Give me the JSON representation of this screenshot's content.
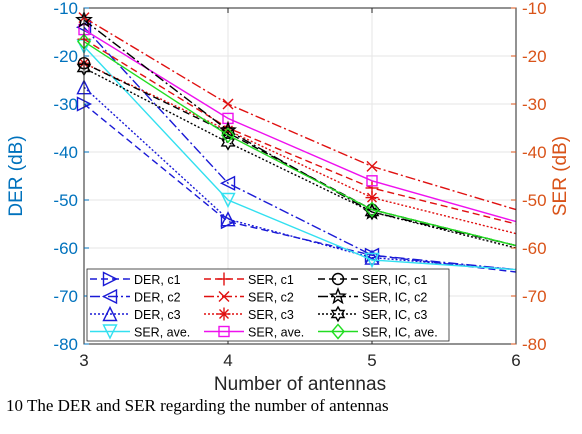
{
  "chart_data": {
    "type": "line",
    "xlabel": "Number of antennas",
    "ylabel_left": "DER (dB)",
    "ylabel_right": "SER (dB)",
    "xlim": [
      3,
      6
    ],
    "ylim": [
      -80,
      -10
    ],
    "xticks": [
      "3",
      "4",
      "5",
      "6"
    ],
    "yticks": [
      "-10",
      "-20",
      "-30",
      "-40",
      "-50",
      "-60",
      "-70",
      "-80"
    ],
    "grid": true,
    "legend_position": "bottom-left",
    "colors": {
      "left_axis": "#0072BD",
      "right_axis": "#D95319"
    },
    "series": [
      {
        "name": "DER, c1",
        "axis": "left",
        "color": "#1a1ad6",
        "dash": "7,4",
        "marker": "triangle-right",
        "x": [
          3,
          4,
          5,
          6
        ],
        "y": [
          -30.0,
          -54.5,
          -61.5,
          -65.0
        ]
      },
      {
        "name": "DER, c2",
        "axis": "left",
        "color": "#1a1ad6",
        "dash": "10,3,2,3",
        "marker": "triangle-left",
        "x": [
          3,
          4,
          5,
          6
        ],
        "y": [
          -14.0,
          -46.5,
          -61.5,
          -64.5
        ]
      },
      {
        "name": "DER, c3",
        "axis": "left",
        "color": "#1a1ad6",
        "dash": "2,2",
        "marker": "triangle-up",
        "x": [
          3,
          4,
          5,
          6
        ],
        "y": [
          -26.5,
          -54.0,
          -62.0,
          -64.5
        ]
      },
      {
        "name": "SER, ave.",
        "axis": "left",
        "color": "#33e0f0",
        "dash": "",
        "marker": "triangle-down",
        "x": [
          3,
          4,
          5,
          6
        ],
        "y": [
          -18.0,
          -50.0,
          -62.5,
          -64.5
        ]
      },
      {
        "name": "SER, c1",
        "axis": "right",
        "color": "#e01010",
        "dash": "7,4",
        "marker": "plus",
        "x": [
          3,
          4,
          5,
          6
        ],
        "y": [
          -16.5,
          -35.0,
          -47.5,
          -55.0
        ]
      },
      {
        "name": "SER, c2",
        "axis": "right",
        "color": "#e01010",
        "dash": "10,3,2,3",
        "marker": "x",
        "x": [
          3,
          4,
          5,
          6
        ],
        "y": [
          -12.0,
          -30.0,
          -43.0,
          -52.0
        ]
      },
      {
        "name": "SER, c3",
        "axis": "right",
        "color": "#e01010",
        "dash": "2,2",
        "marker": "asterisk",
        "x": [
          3,
          4,
          5,
          6
        ],
        "y": [
          -21.5,
          -35.5,
          -49.5,
          -57.0
        ]
      },
      {
        "name": "SER, ave.",
        "axis": "right",
        "color": "#ee11ee",
        "dash": "",
        "marker": "square",
        "x": [
          3,
          4,
          5,
          6
        ],
        "y": [
          -14.5,
          -33.0,
          -46.0,
          -54.5
        ]
      },
      {
        "name": "SER, IC, c1",
        "axis": "right",
        "color": "#000000",
        "dash": "7,4",
        "marker": "circle",
        "x": [
          3,
          4,
          5,
          6
        ],
        "y": [
          -21.5,
          -36.0,
          -52.0,
          -59.5
        ]
      },
      {
        "name": "SER, IC, c2",
        "axis": "right",
        "color": "#000000",
        "dash": "10,3,2,3",
        "marker": "pentagram",
        "x": [
          3,
          4,
          5,
          6
        ],
        "y": [
          -12.5,
          -35.5,
          -52.5,
          -59.5
        ]
      },
      {
        "name": "SER, IC, c3",
        "axis": "right",
        "color": "#000000",
        "dash": "2,2",
        "marker": "hexagram",
        "x": [
          3,
          4,
          5,
          6
        ],
        "y": [
          -22.5,
          -38.0,
          -52.5,
          -60.0
        ]
      },
      {
        "name": "SER, IC, ave.",
        "axis": "right",
        "color": "#22dd22",
        "dash": "",
        "marker": "diamond",
        "x": [
          3,
          4,
          5,
          6
        ],
        "y": [
          -17.0,
          -36.5,
          -52.0,
          -59.5
        ]
      }
    ]
  },
  "caption": "10    The DER and SER regarding the number of antennas"
}
